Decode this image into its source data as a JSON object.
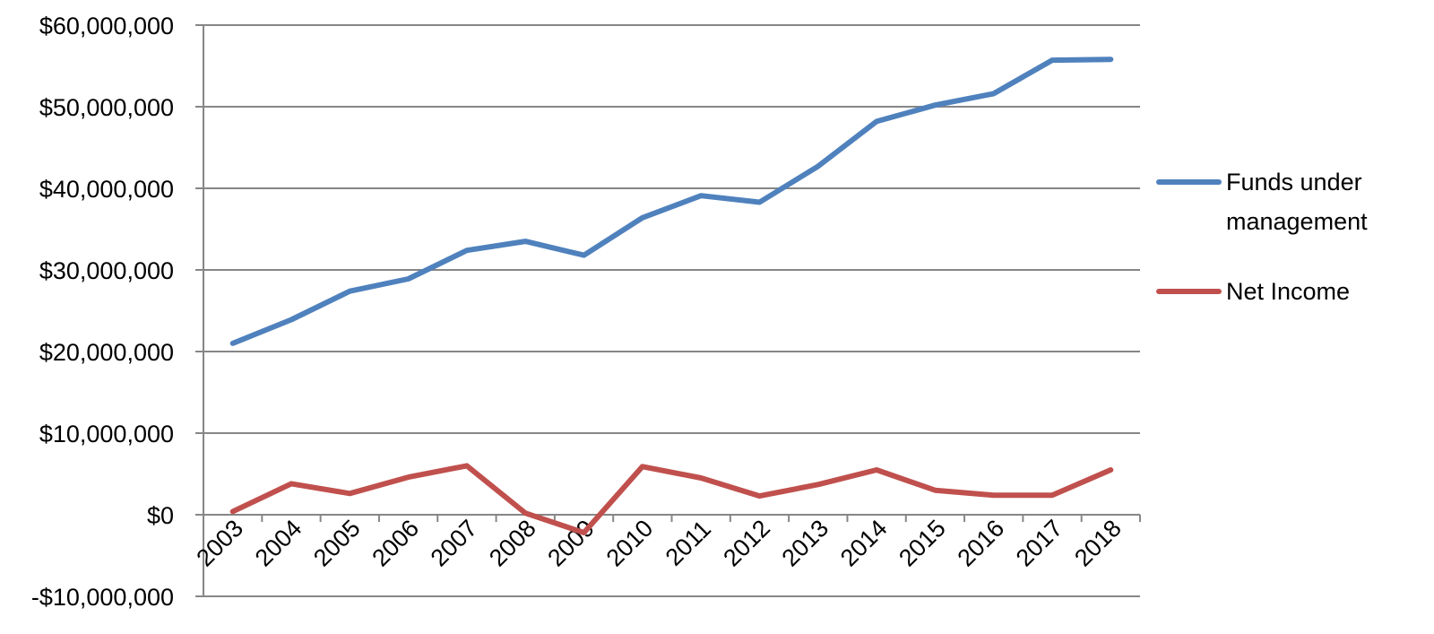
{
  "chart_data": {
    "type": "line",
    "title": "",
    "xlabel": "",
    "ylabel": "",
    "categories": [
      "2003",
      "2004",
      "2005",
      "2006",
      "2007",
      "2008",
      "2009",
      "2010",
      "2011",
      "2012",
      "2013",
      "2014",
      "2015",
      "2016",
      "2017",
      "2018"
    ],
    "ylim": [
      -10000000,
      60000000
    ],
    "y_ticks": [
      60000000,
      50000000,
      40000000,
      30000000,
      20000000,
      10000000,
      0,
      -10000000
    ],
    "y_tick_labels": [
      "$60,000,000",
      "$50,000,000",
      "$40,000,000",
      "$30,000,000",
      "$20,000,000",
      "$10,000,000",
      "$0",
      "-$10,000,000"
    ],
    "grid": true,
    "legend_position": "right",
    "series": [
      {
        "name": "Funds under management",
        "legend_lines": [
          "Funds under",
          "management"
        ],
        "color": "#4F81BD",
        "values": [
          21000000,
          23900000,
          27400000,
          28900000,
          32400000,
          33500000,
          31800000,
          36400000,
          39100000,
          38300000,
          42700000,
          48200000,
          50200000,
          51600000,
          55700000,
          55800000
        ]
      },
      {
        "name": "Net Income",
        "legend_lines": [
          "Net Income"
        ],
        "color": "#C0504D",
        "values": [
          400000,
          3800000,
          2600000,
          4600000,
          6000000,
          200000,
          -2200000,
          5900000,
          4500000,
          2300000,
          3700000,
          5500000,
          3000000,
          2400000,
          2400000,
          5500000
        ]
      }
    ]
  }
}
